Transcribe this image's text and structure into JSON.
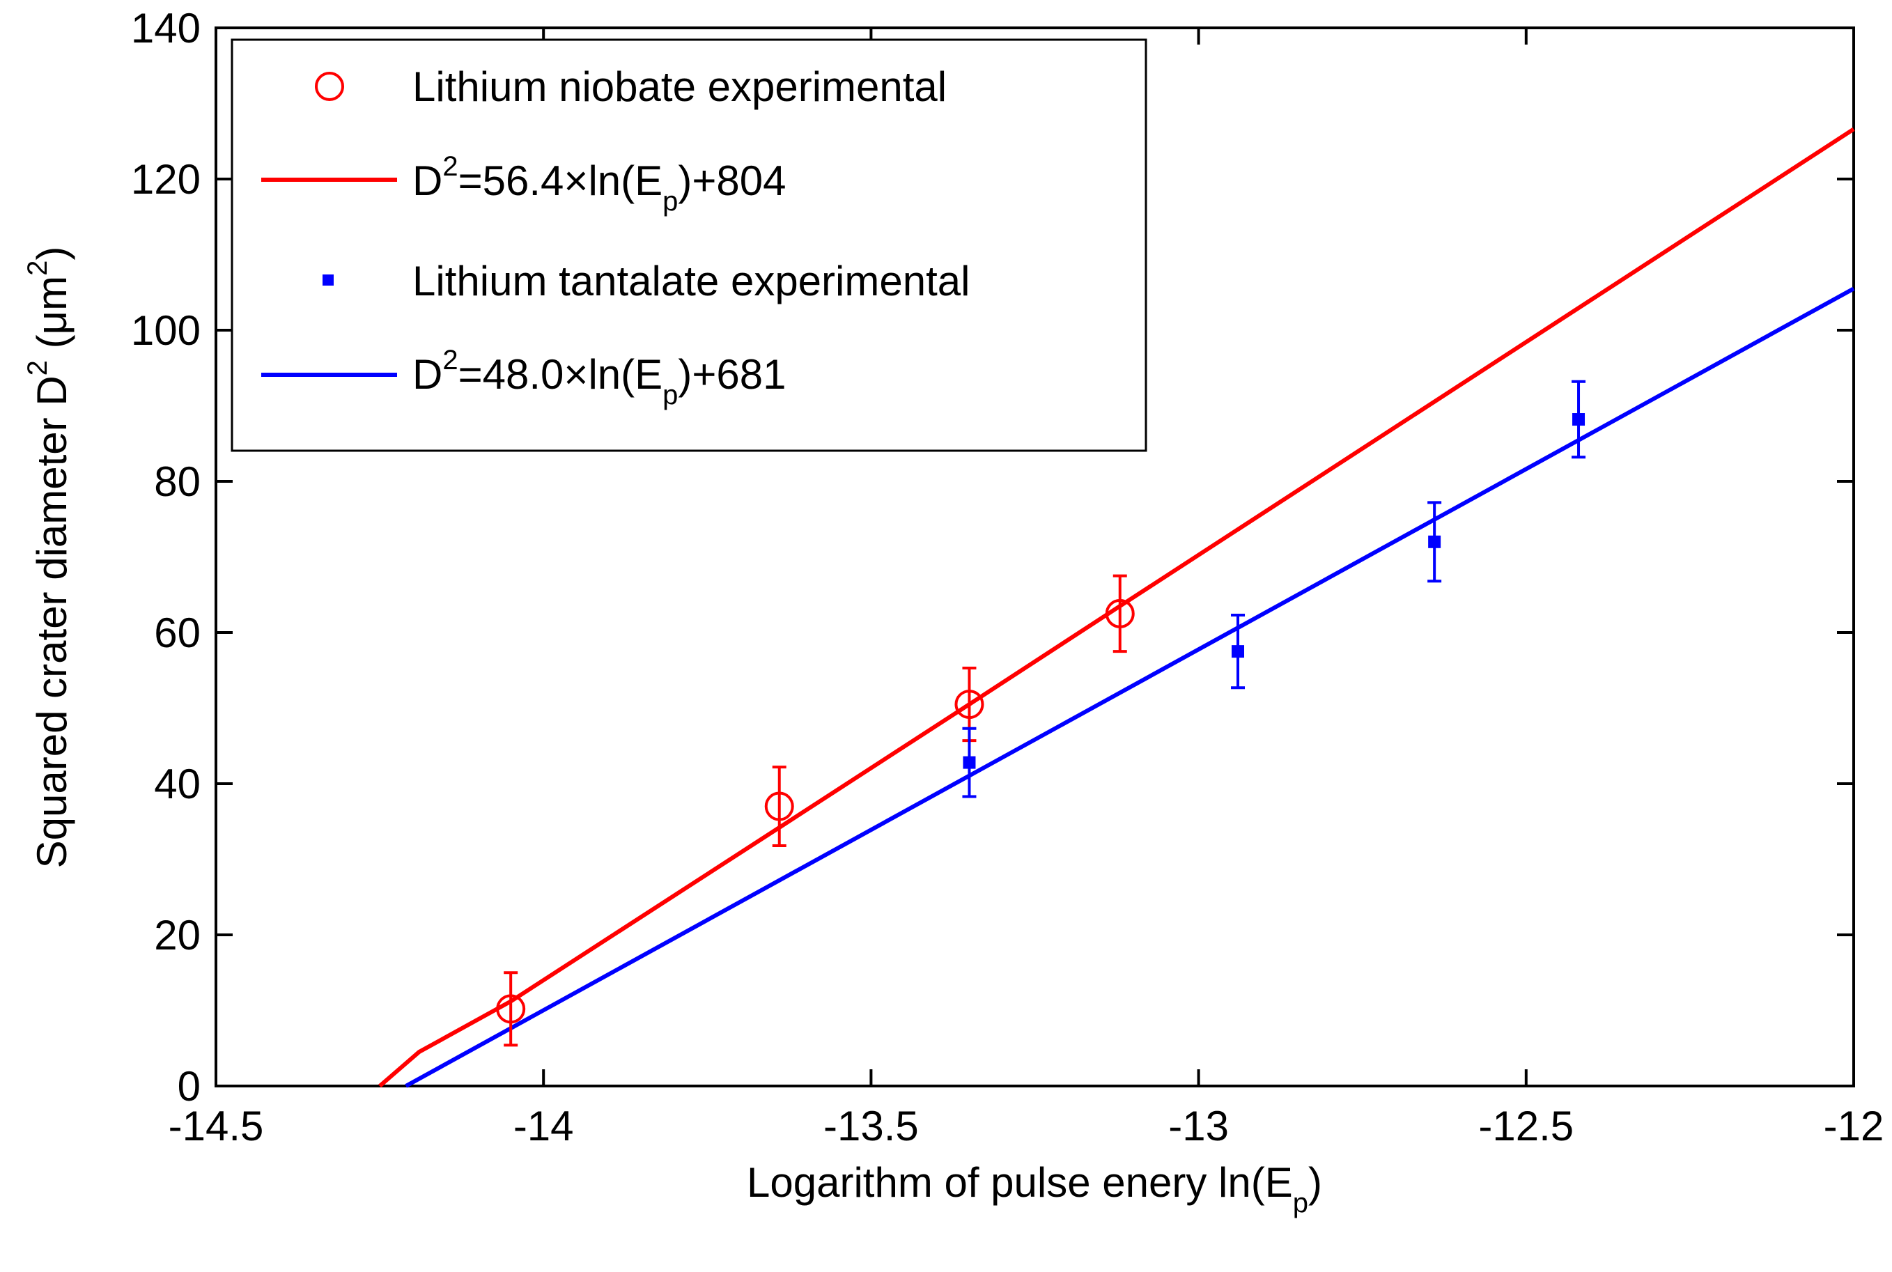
{
  "chart_data": {
    "type": "scatter",
    "title": "",
    "xlabel": {
      "main": "Logarithm of pulse enery  ln(E",
      "sub": "p",
      "tail": ")"
    },
    "ylabel": {
      "main": "Squared crater diameter D",
      "sup": "2",
      "mid": " (μm",
      "sup2": "2",
      "tail": ")"
    },
    "xlim": [
      -14.5,
      -12
    ],
    "ylim": [
      0,
      140
    ],
    "x_ticks": [
      -14.5,
      -14,
      -13.5,
      -13,
      -12.5,
      -12
    ],
    "x_tick_labels": [
      "-14.5",
      "-14",
      "-13.5",
      "-13",
      "-12.5",
      "-12"
    ],
    "y_ticks": [
      0,
      20,
      40,
      60,
      80,
      100,
      120,
      140
    ],
    "y_tick_labels": [
      "0",
      "20",
      "40",
      "60",
      "80",
      "100",
      "120",
      "140"
    ],
    "grid": false,
    "legend_position": "top-left",
    "series": [
      {
        "name": "Lithium niobate experimental",
        "kind": "points",
        "marker": "circle",
        "color": "#ff0000",
        "x": [
          -14.05,
          -13.64,
          -13.35,
          -13.12
        ],
        "y": [
          10.2,
          37.0,
          50.5,
          62.5
        ],
        "err": [
          4.8,
          5.2,
          4.8,
          5.0
        ]
      },
      {
        "name": "D2=56.4×ln(Ep)+804",
        "label": {
          "a": "D",
          "sup": "2",
          "b": "=56.4×ln(E",
          "sub": "p",
          "c": ")+804"
        },
        "kind": "fit",
        "color": "#ff0000",
        "slope": 56.4,
        "intercept": 804,
        "x": [
          -14.25,
          -14.19,
          -14.05,
          -13.64,
          -13.35,
          -13.12,
          -12.0
        ],
        "y": [
          0,
          4.5,
          11.2,
          34.2,
          50.5,
          63.5,
          126.6
        ]
      },
      {
        "name": "Lithium tantalate experimental",
        "kind": "points",
        "marker": "dot",
        "color": "#0000ff",
        "x": [
          -13.35,
          -12.94,
          -12.64,
          -12.42
        ],
        "y": [
          42.8,
          57.5,
          72.0,
          88.2
        ],
        "err": [
          4.5,
          4.8,
          5.2,
          5.0
        ]
      },
      {
        "name": "D2=48.0×ln(Ep)+681",
        "label": {
          "a": "D",
          "sup": "2",
          "b": "=48.0×ln(E",
          "sub": "p",
          "c": ")+681"
        },
        "kind": "fit",
        "color": "#0000ff",
        "slope": 48.0,
        "intercept": 681,
        "x": [
          -14.21,
          -12.0
        ],
        "y": [
          0,
          105.5
        ]
      }
    ]
  }
}
